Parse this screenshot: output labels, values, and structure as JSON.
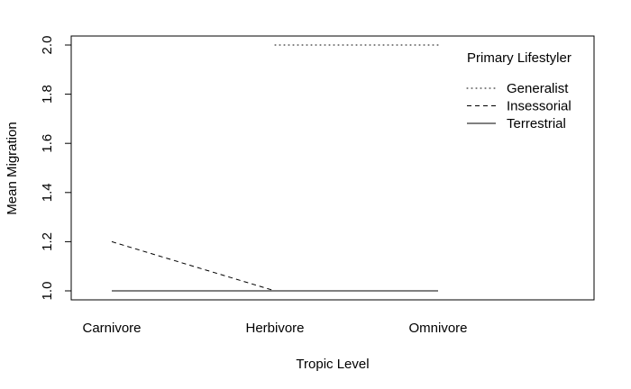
{
  "chart_data": {
    "type": "line",
    "title": "",
    "xlabel": "Tropic Level",
    "ylabel": "Mean Migration",
    "categories": [
      "Carnivore",
      "Herbivore",
      "Omnivore"
    ],
    "ylim": [
      1.0,
      2.0
    ],
    "yticks": [
      "1.0",
      "1.2",
      "1.4",
      "1.6",
      "1.8",
      "2.0"
    ],
    "grid": false,
    "legend": {
      "title": "Primary Lifestyler",
      "position": "top-right",
      "entries": [
        "Generalist",
        "Insessorial",
        "Terrestrial"
      ]
    },
    "series": [
      {
        "name": "Generalist",
        "line_style": "dotted",
        "values": [
          null,
          2.0,
          2.0
        ]
      },
      {
        "name": "Insessorial",
        "line_style": "dashed",
        "values": [
          1.2,
          1.0,
          1.0
        ]
      },
      {
        "name": "Terrestrial",
        "line_style": "solid",
        "values": [
          1.0,
          1.0,
          1.0
        ]
      }
    ]
  }
}
